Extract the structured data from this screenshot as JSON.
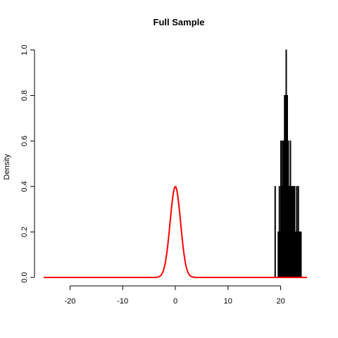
{
  "chart_data": {
    "type": "histogram",
    "title": "Full Sample",
    "xlabel": "",
    "ylabel": "Density",
    "xlim": [
      -25,
      25
    ],
    "ylim": [
      0,
      1.0
    ],
    "xticks": [
      -20,
      -10,
      0,
      10,
      20
    ],
    "yticks": [
      0.0,
      0.2,
      0.4,
      0.6,
      0.8,
      1.0
    ],
    "xtick_labels": [
      "-20",
      "-10",
      "0",
      "10",
      "20"
    ],
    "ytick_labels": [
      "0.0",
      "0.2",
      "0.4",
      "0.6",
      "0.8",
      "1.0"
    ],
    "bar_color": "#000000",
    "curve_color": "#ff0000",
    "histogram_bins": [
      {
        "x0": 18.9,
        "x1": 19.0,
        "density": 0.4
      },
      {
        "x0": 19.5,
        "x1": 19.6,
        "density": 0.2
      },
      {
        "x0": 19.7,
        "x1": 19.8,
        "density": 0.4
      },
      {
        "x0": 19.8,
        "x1": 19.9,
        "density": 0.2
      },
      {
        "x0": 19.9,
        "x1": 20.0,
        "density": 0.2
      },
      {
        "x0": 20.0,
        "x1": 20.1,
        "density": 0.6
      },
      {
        "x0": 20.1,
        "x1": 20.2,
        "density": 0.4
      },
      {
        "x0": 20.2,
        "x1": 20.3,
        "density": 0.2
      },
      {
        "x0": 20.3,
        "x1": 20.4,
        "density": 0.6
      },
      {
        "x0": 20.4,
        "x1": 20.5,
        "density": 0.4
      },
      {
        "x0": 20.5,
        "x1": 20.6,
        "density": 0.6
      },
      {
        "x0": 20.6,
        "x1": 20.7,
        "density": 0.4
      },
      {
        "x0": 20.7,
        "x1": 20.8,
        "density": 0.8
      },
      {
        "x0": 20.8,
        "x1": 20.9,
        "density": 0.6
      },
      {
        "x0": 20.9,
        "x1": 21.0,
        "density": 0.8
      },
      {
        "x0": 21.0,
        "x1": 21.1,
        "density": 1.0
      },
      {
        "x0": 21.1,
        "x1": 21.2,
        "density": 0.6
      },
      {
        "x0": 21.2,
        "x1": 21.3,
        "density": 0.8
      },
      {
        "x0": 21.3,
        "x1": 21.4,
        "density": 0.4
      },
      {
        "x0": 21.4,
        "x1": 21.5,
        "density": 0.6
      },
      {
        "x0": 21.5,
        "x1": 21.6,
        "density": 0.4
      },
      {
        "x0": 21.6,
        "x1": 21.7,
        "density": 0.2
      },
      {
        "x0": 21.7,
        "x1": 21.8,
        "density": 0.4
      },
      {
        "x0": 21.8,
        "x1": 21.9,
        "density": 0.6
      },
      {
        "x0": 21.9,
        "x1": 22.0,
        "density": 0.2
      },
      {
        "x0": 22.0,
        "x1": 22.1,
        "density": 0.4
      },
      {
        "x0": 22.1,
        "x1": 22.2,
        "density": 0.2
      },
      {
        "x0": 22.2,
        "x1": 22.3,
        "density": 0.4
      },
      {
        "x0": 22.3,
        "x1": 22.4,
        "density": 0.2
      },
      {
        "x0": 22.4,
        "x1": 22.5,
        "density": 0.4
      },
      {
        "x0": 22.5,
        "x1": 22.6,
        "density": 0.2
      },
      {
        "x0": 22.6,
        "x1": 22.7,
        "density": 0.4
      },
      {
        "x0": 22.7,
        "x1": 22.8,
        "density": 0.2
      },
      {
        "x0": 22.8,
        "x1": 22.9,
        "density": 0.2
      },
      {
        "x0": 23.0,
        "x1": 23.1,
        "density": 0.4
      },
      {
        "x0": 23.1,
        "x1": 23.2,
        "density": 0.2
      },
      {
        "x0": 23.3,
        "x1": 23.4,
        "density": 0.4
      },
      {
        "x0": 23.4,
        "x1": 23.5,
        "density": 0.2
      },
      {
        "x0": 23.6,
        "x1": 23.7,
        "density": 0.2
      },
      {
        "x0": 23.8,
        "x1": 23.9,
        "density": 0.2
      }
    ],
    "density_curve": {
      "distribution": "normal",
      "mean": 0,
      "sd": 1,
      "x_range": [
        -25,
        25
      ]
    }
  }
}
